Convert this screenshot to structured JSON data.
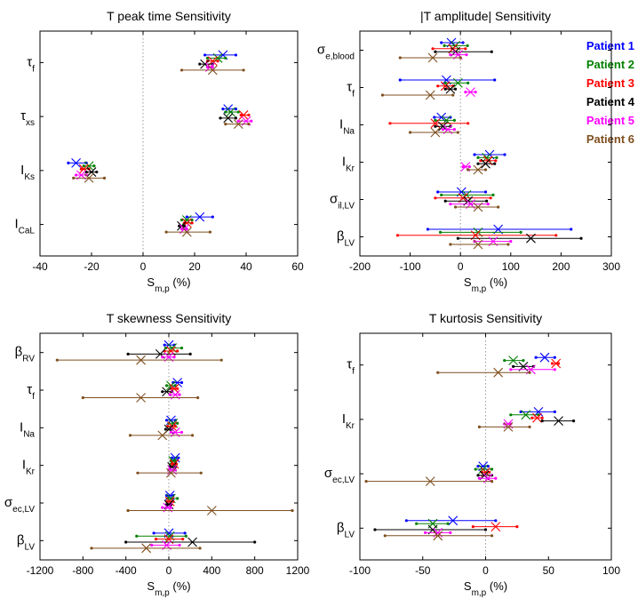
{
  "figure_legend": [
    {
      "label": "Patient 1",
      "color": "#0000ff"
    },
    {
      "label": "Patient 2",
      "color": "#008000"
    },
    {
      "label": "Patient 3",
      "color": "#ff0000"
    },
    {
      "label": "Patient 4",
      "color": "#000000"
    },
    {
      "label": "Patient 5",
      "color": "#ff00ff"
    },
    {
      "label": "Patient 6",
      "color": "#7f4f1f"
    }
  ],
  "chart_data": [
    {
      "type": "scatter",
      "title": "T peak time Sensitivity",
      "xlabel_main": "S",
      "xlabel_sub": "m,p",
      "xlabel_unit": " (%)",
      "xlim": [
        -40,
        60
      ],
      "xticks": [
        -40,
        -20,
        0,
        20,
        40,
        60
      ],
      "params": [
        {
          "main": "τ",
          "sub": "f"
        },
        {
          "main": "τ",
          "sub": "xs"
        },
        {
          "main": "I",
          "sub": "Ks"
        },
        {
          "main": "I",
          "sub": "CaL"
        }
      ],
      "series": [
        {
          "name": "Patient 1",
          "points": [
            [
              31,
              24,
              36
            ],
            [
              33,
              31,
              36
            ],
            [
              -26,
              -29,
              -22
            ],
            [
              22,
              17,
              27
            ]
          ]
        },
        {
          "name": "Patient 2",
          "points": [
            [
              29,
              25,
              32
            ],
            [
              34,
              32,
              37
            ],
            [
              -21,
              -23,
              -19
            ],
            [
              17,
              15,
              19
            ]
          ]
        },
        {
          "name": "Patient 3",
          "points": [
            [
              27,
              25,
              29
            ],
            [
              39,
              38,
              41
            ],
            [
              -23,
              -24,
              -21
            ],
            [
              17,
              16,
              19
            ]
          ]
        },
        {
          "name": "Patient 4",
          "points": [
            [
              24,
              22,
              27
            ],
            [
              33,
              30,
              36
            ],
            [
              -20,
              -22,
              -18
            ],
            [
              15,
              14,
              16
            ]
          ]
        },
        {
          "name": "Patient 5",
          "points": [
            [
              26,
              25,
              27
            ],
            [
              40,
              37,
              42
            ],
            [
              -24,
              -26,
              -22
            ],
            [
              16,
              15,
              17
            ]
          ]
        },
        {
          "name": "Patient 6",
          "points": [
            [
              27,
              15,
              39
            ],
            [
              37,
              32,
              41
            ],
            [
              -21,
              -27,
              -15
            ],
            [
              17,
              9,
              26
            ]
          ]
        }
      ]
    },
    {
      "type": "scatter",
      "title": "|T amplitude| Sensitivity",
      "xlabel_main": "S",
      "xlabel_sub": "m,p",
      "xlabel_unit": " (%)",
      "xlim": [
        -200,
        300
      ],
      "xticks": [
        -200,
        -100,
        0,
        100,
        200,
        300
      ],
      "params": [
        {
          "main": "σ",
          "sub": "e,blood"
        },
        {
          "main": "τ",
          "sub": "f"
        },
        {
          "main": "I",
          "sub": "Na"
        },
        {
          "main": "I",
          "sub": "Kr"
        },
        {
          "main": "σ",
          "sub": "il,LV"
        },
        {
          "main": "β",
          "sub": "LV"
        }
      ],
      "series": [
        {
          "name": "Patient 1",
          "points": [
            [
              -18,
              -38,
              5
            ],
            [
              -28,
              -120,
              68
            ],
            [
              -38,
              -52,
              -20
            ],
            [
              58,
              28,
              88
            ],
            [
              2,
              -45,
              50
            ],
            [
              75,
              -65,
              220
            ]
          ]
        },
        {
          "name": "Patient 2",
          "points": [
            [
              -10,
              -32,
              14
            ],
            [
              -5,
              -30,
              15
            ],
            [
              -28,
              -50,
              -12
            ],
            [
              52,
              35,
              72
            ],
            [
              12,
              -38,
              65
            ],
            [
              35,
              -40,
              120
            ]
          ]
        },
        {
          "name": "Patient 3",
          "points": [
            [
              -15,
              -55,
              10
            ],
            [
              -30,
              -45,
              -15
            ],
            [
              -50,
              -140,
              15
            ],
            [
              55,
              40,
              70
            ],
            [
              5,
              -50,
              60
            ],
            [
              30,
              -125,
              190
            ]
          ]
        },
        {
          "name": "Patient 4",
          "points": [
            [
              -10,
              -50,
              62
            ],
            [
              -20,
              -30,
              -10
            ],
            [
              -35,
              -50,
              -20
            ],
            [
              50,
              35,
              68
            ],
            [
              15,
              -30,
              52
            ],
            [
              140,
              -5,
              240
            ]
          ]
        },
        {
          "name": "Patient 5",
          "points": [
            [
              -5,
              -20,
              12
            ],
            [
              20,
              10,
              30
            ],
            [
              -25,
              -35,
              -12
            ],
            [
              10,
              5,
              18
            ],
            [
              20,
              -20,
              55
            ],
            [
              65,
              28,
              100
            ]
          ]
        },
        {
          "name": "Patient 6",
          "points": [
            [
              -55,
              -120,
              0
            ],
            [
              -60,
              -155,
              -15
            ],
            [
              -50,
              -100,
              -5
            ],
            [
              35,
              15,
              50
            ],
            [
              35,
              -10,
              75
            ],
            [
              35,
              -20,
              95
            ]
          ]
        }
      ]
    },
    {
      "type": "scatter",
      "title": "T skewness Sensitivity",
      "xlabel_main": "S",
      "xlabel_sub": "m,p",
      "xlabel_unit": " (%)",
      "xlim": [
        -1200,
        1200
      ],
      "xticks": [
        -1200,
        -800,
        -400,
        0,
        400,
        800,
        1200
      ],
      "params": [
        {
          "main": "β",
          "sub": "RV"
        },
        {
          "main": "τ",
          "sub": "f"
        },
        {
          "main": "I",
          "sub": "Na"
        },
        {
          "main": "I",
          "sub": "Kr"
        },
        {
          "main": "σ",
          "sub": "ec,LV"
        },
        {
          "main": "β",
          "sub": "LV"
        }
      ],
      "series": [
        {
          "name": "Patient 1",
          "points": [
            [
              0,
              -40,
              50
            ],
            [
              80,
              40,
              120
            ],
            [
              20,
              -20,
              60
            ],
            [
              60,
              30,
              90
            ],
            [
              10,
              -20,
              40
            ],
            [
              0,
              -140,
              150
            ]
          ]
        },
        {
          "name": "Patient 2",
          "points": [
            [
              30,
              -30,
              120
            ],
            [
              20,
              -20,
              60
            ],
            [
              40,
              0,
              80
            ],
            [
              40,
              20,
              60
            ],
            [
              20,
              -10,
              80
            ],
            [
              10,
              -300,
              160
            ]
          ]
        },
        {
          "name": "Patient 3",
          "points": [
            [
              20,
              -40,
              80
            ],
            [
              50,
              20,
              80
            ],
            [
              30,
              -10,
              60
            ],
            [
              50,
              30,
              70
            ],
            [
              10,
              -20,
              40
            ],
            [
              0,
              -120,
              130
            ]
          ]
        },
        {
          "name": "Patient 4",
          "points": [
            [
              -80,
              -380,
              200
            ],
            [
              -20,
              -60,
              30
            ],
            [
              0,
              -30,
              30
            ],
            [
              30,
              10,
              60
            ],
            [
              0,
              -20,
              20
            ],
            [
              220,
              -400,
              800
            ]
          ]
        },
        {
          "name": "Patient 5",
          "points": [
            [
              0,
              -60,
              50
            ],
            [
              60,
              10,
              100
            ],
            [
              60,
              20,
              120
            ],
            [
              30,
              0,
              60
            ],
            [
              -10,
              -60,
              20
            ],
            [
              -20,
              -160,
              100
            ]
          ]
        },
        {
          "name": "Patient 6",
          "points": [
            [
              -260,
              -1040,
              490
            ],
            [
              -260,
              -800,
              270
            ],
            [
              -60,
              -360,
              220
            ],
            [
              20,
              -290,
              300
            ],
            [
              400,
              -380,
              1150
            ],
            [
              -210,
              -720,
              290
            ]
          ]
        }
      ]
    },
    {
      "type": "scatter",
      "title": "T kurtosis Sensitivity",
      "xlabel_main": "S",
      "xlabel_sub": "m,p",
      "xlabel_unit": " (%)",
      "xlim": [
        -100,
        100
      ],
      "xticks": [
        -100,
        -50,
        0,
        50,
        100
      ],
      "params": [
        {
          "main": "τ",
          "sub": "f"
        },
        {
          "main": "I",
          "sub": "Kr"
        },
        {
          "main": "σ",
          "sub": "ec,LV"
        },
        {
          "main": "β",
          "sub": "LV"
        }
      ],
      "series": [
        {
          "name": "Patient 1",
          "points": [
            [
              47,
              40,
              55
            ],
            [
              42,
              28,
              55
            ],
            [
              -2,
              -6,
              2
            ],
            [
              -26,
              -63,
              8
            ]
          ]
        },
        {
          "name": "Patient 2",
          "points": [
            [
              22,
              15,
              30
            ],
            [
              32,
              20,
              42
            ],
            [
              -2,
              -8,
              5
            ],
            [
              -42,
              -55,
              -30
            ]
          ]
        },
        {
          "name": "Patient 3",
          "points": [
            [
              56,
              53,
              58
            ],
            [
              41,
              37,
              45
            ],
            [
              0,
              -3,
              3
            ],
            [
              8,
              -10,
              25
            ]
          ]
        },
        {
          "name": "Patient 4",
          "points": [
            [
              30,
              22,
              38
            ],
            [
              58,
              45,
              70
            ],
            [
              -1,
              -6,
              5
            ],
            [
              -42,
              -88,
              0
            ]
          ]
        },
        {
          "name": "Patient 5",
          "points": [
            [
              36,
              20,
              55
            ],
            [
              18,
              15,
              20
            ],
            [
              2,
              -5,
              8
            ],
            [
              -38,
              -48,
              -28
            ]
          ]
        },
        {
          "name": "Patient 6",
          "points": [
            [
              10,
              -38,
              35
            ],
            [
              18,
              -5,
              35
            ],
            [
              -44,
              -95,
              5
            ],
            [
              -38,
              -80,
              5
            ]
          ]
        }
      ]
    }
  ]
}
